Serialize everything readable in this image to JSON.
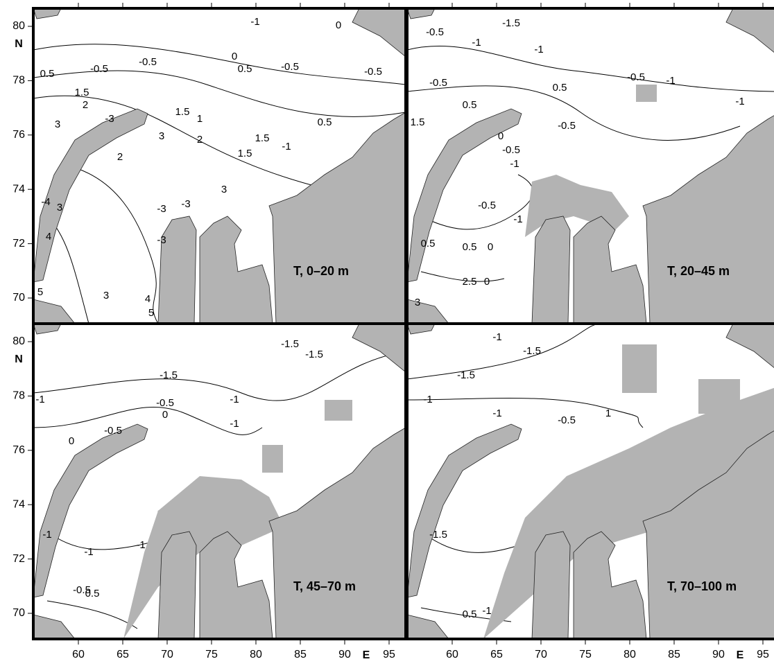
{
  "panels": [
    {
      "label": "T,  0–20 m",
      "contour_labels": [
        "-1",
        "0",
        "-0.5",
        "-0.5",
        "0",
        "0.5",
        "-0.5",
        "-0.5",
        "0.5",
        "1.5",
        "2",
        "1.5",
        "3",
        "-3",
        "1",
        "0.5",
        "2",
        "2",
        "3",
        "1.5",
        "1.5",
        "-1",
        "3",
        "-4",
        "3",
        "-3",
        "-3",
        "4",
        "-3",
        "5",
        "3",
        "4",
        "5"
      ]
    },
    {
      "label": "T,  20–45 m",
      "contour_labels": [
        "-1.5",
        "-0.5",
        "-1",
        "-1",
        "-0.5",
        "-1",
        "-0.5",
        "0.5",
        "0.5",
        "-1",
        "1.5",
        "-0.5",
        "0",
        "-0.5",
        "-1",
        "-0.5",
        "-1",
        "0.5",
        "0.5",
        "0",
        "2.5",
        "0",
        "3"
      ]
    },
    {
      "label": "T,  45–70 m",
      "contour_labels": [
        "-1.5",
        "-1.5",
        "-1.5",
        "-1",
        "-0.5",
        "-1",
        "0",
        "-0.5",
        "0",
        "-1",
        "-1",
        "-1",
        "-1",
        "-0.5",
        "0.5"
      ]
    },
    {
      "label": "T,  70–100 m",
      "contour_labels": [
        "-1.5",
        "-1",
        "-1.5",
        "-1",
        "-1",
        "-0.5",
        "1",
        "-1.5",
        "0.5",
        "-1"
      ]
    }
  ],
  "y_axis": {
    "ticks": [
      "80",
      "78",
      "76",
      "74",
      "72",
      "70"
    ],
    "unit": "N"
  },
  "x_axis": {
    "ticks": [
      "60",
      "65",
      "70",
      "75",
      "80",
      "85",
      "90",
      "95"
    ],
    "unit": "E"
  }
}
